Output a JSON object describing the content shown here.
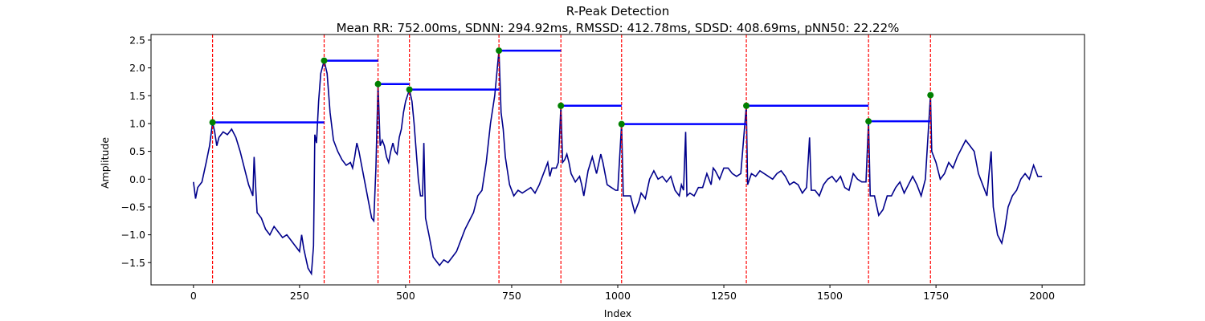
{
  "chart_data": {
    "type": "line",
    "title": "R-Peak Detection",
    "subtitle": "Mean RR: 752.00ms, SDNN: 294.92ms, RMSSD: 412.78ms, SDSD: 408.69ms, pNN50: 22.22%",
    "x_label": "Index",
    "y_label": "Amplitude",
    "xlim": [
      -100,
      2100
    ],
    "ylim": [
      -1.9,
      2.6
    ],
    "xticks": [
      0,
      250,
      500,
      750,
      1000,
      1250,
      1500,
      1750,
      2000
    ],
    "yticks": [
      {
        "value": -1.5,
        "label": "−1.5"
      },
      {
        "value": -1,
        "label": "−1.0"
      },
      {
        "value": -0.5,
        "label": "−0.5"
      },
      {
        "value": 0,
        "label": "0.0"
      },
      {
        "value": 0.5,
        "label": "0.5"
      },
      {
        "value": 1,
        "label": "1.0"
      },
      {
        "value": 1.5,
        "label": "1.5"
      },
      {
        "value": 2,
        "label": "2.0"
      },
      {
        "value": 2.5,
        "label": "2.5"
      }
    ],
    "signal": {
      "color": "#00008b",
      "x": [
        0,
        5,
        10,
        20,
        30,
        38,
        45,
        50,
        55,
        60,
        70,
        80,
        90,
        100,
        110,
        120,
        130,
        140,
        143,
        147,
        150,
        160,
        170,
        180,
        190,
        200,
        210,
        220,
        230,
        240,
        250,
        255,
        260,
        270,
        278,
        283,
        286,
        290,
        295,
        300,
        308,
        315,
        322,
        330,
        340,
        350,
        360,
        370,
        375,
        380,
        385,
        390,
        395,
        400,
        410,
        420,
        425,
        430,
        435,
        440,
        445,
        450,
        455,
        460,
        465,
        470,
        475,
        480,
        485,
        490,
        495,
        500,
        509,
        515,
        520,
        525,
        530,
        535,
        540,
        543,
        547,
        555,
        565,
        575,
        580,
        590,
        600,
        610,
        620,
        630,
        640,
        650,
        660,
        670,
        680,
        690,
        700,
        710,
        720,
        725,
        730,
        735,
        745,
        755,
        765,
        775,
        785,
        795,
        805,
        815,
        825,
        835,
        840,
        845,
        855,
        860,
        866,
        870,
        875,
        880,
        885,
        890,
        900,
        910,
        915,
        920,
        930,
        940,
        950,
        960,
        965,
        975,
        985,
        995,
        1000,
        1009,
        1013,
        1020,
        1030,
        1040,
        1050,
        1055,
        1065,
        1075,
        1085,
        1095,
        1105,
        1115,
        1125,
        1135,
        1145,
        1150,
        1155,
        1160,
        1163,
        1170,
        1180,
        1190,
        1200,
        1210,
        1220,
        1225,
        1230,
        1240,
        1250,
        1260,
        1270,
        1280,
        1290,
        1303,
        1306,
        1315,
        1325,
        1335,
        1345,
        1355,
        1365,
        1375,
        1385,
        1395,
        1405,
        1415,
        1425,
        1435,
        1445,
        1452,
        1456,
        1465,
        1475,
        1485,
        1495,
        1505,
        1515,
        1525,
        1535,
        1545,
        1555,
        1565,
        1575,
        1585,
        1591,
        1595,
        1605,
        1615,
        1625,
        1635,
        1645,
        1655,
        1665,
        1675,
        1685,
        1695,
        1705,
        1715,
        1725,
        1737,
        1740,
        1750,
        1760,
        1770,
        1780,
        1790,
        1800,
        1810,
        1820,
        1830,
        1840,
        1850,
        1860,
        1870,
        1880,
        1885,
        1895,
        1905,
        1912,
        1920,
        1930,
        1940,
        1950,
        1960,
        1970,
        1980,
        1985,
        1990,
        2000
      ],
      "values": [
        -0.05,
        -0.35,
        -0.15,
        -0.05,
        0.3,
        0.6,
        1.02,
        0.85,
        0.6,
        0.75,
        0.85,
        0.8,
        0.9,
        0.75,
        0.5,
        0.2,
        -0.1,
        -0.3,
        0.4,
        -0.2,
        -0.6,
        -0.7,
        -0.9,
        -1.0,
        -0.85,
        -0.95,
        -1.05,
        -1.0,
        -1.1,
        -1.2,
        -1.3,
        -1.0,
        -1.25,
        -1.6,
        -1.7,
        -1.2,
        0.8,
        0.65,
        1.4,
        1.9,
        2.13,
        1.9,
        1.2,
        0.7,
        0.5,
        0.35,
        0.25,
        0.3,
        0.2,
        0.4,
        0.65,
        0.5,
        0.3,
        0.1,
        -0.3,
        -0.7,
        -0.75,
        0.2,
        1.71,
        0.6,
        0.7,
        0.6,
        0.4,
        0.3,
        0.5,
        0.65,
        0.5,
        0.45,
        0.75,
        0.9,
        1.2,
        1.4,
        1.61,
        1.4,
        1.0,
        0.5,
        0.0,
        -0.3,
        -0.3,
        0.65,
        -0.7,
        -1.0,
        -1.4,
        -1.5,
        -1.55,
        -1.45,
        -1.5,
        -1.4,
        -1.3,
        -1.1,
        -0.9,
        -0.75,
        -0.6,
        -0.3,
        -0.2,
        0.3,
        1.0,
        1.5,
        2.31,
        1.2,
        0.9,
        0.4,
        -0.1,
        -0.3,
        -0.2,
        -0.25,
        -0.2,
        -0.15,
        -0.25,
        -0.1,
        0.1,
        0.3,
        0.05,
        0.2,
        0.2,
        0.3,
        1.32,
        0.3,
        0.35,
        0.45,
        0.3,
        0.1,
        -0.05,
        0.05,
        -0.1,
        -0.3,
        0.15,
        0.4,
        0.1,
        0.45,
        0.3,
        -0.1,
        -0.15,
        -0.2,
        -0.2,
        0.99,
        -0.3,
        -0.3,
        -0.3,
        -0.6,
        -0.4,
        -0.25,
        -0.35,
        0.0,
        0.15,
        0.0,
        0.05,
        -0.05,
        0.05,
        -0.2,
        -0.3,
        -0.1,
        -0.2,
        0.85,
        -0.3,
        -0.25,
        -0.3,
        -0.15,
        -0.15,
        0.1,
        -0.1,
        0.2,
        0.15,
        0.0,
        0.2,
        0.2,
        0.1,
        0.05,
        0.1,
        1.32,
        -0.1,
        0.1,
        0.05,
        0.15,
        0.1,
        0.05,
        0.0,
        0.1,
        0.15,
        0.05,
        -0.1,
        -0.05,
        -0.1,
        -0.25,
        -0.15,
        0.75,
        -0.2,
        -0.2,
        -0.3,
        -0.1,
        0.0,
        0.05,
        -0.05,
        0.05,
        -0.15,
        -0.2,
        0.1,
        0.0,
        -0.05,
        -0.05,
        1.04,
        -0.3,
        -0.3,
        -0.65,
        -0.55,
        -0.3,
        -0.3,
        -0.15,
        -0.05,
        -0.25,
        -0.1,
        0.05,
        -0.1,
        -0.3,
        0.0,
        1.51,
        0.5,
        0.3,
        0.0,
        0.1,
        0.3,
        0.2,
        0.4,
        0.55,
        0.7,
        0.6,
        0.5,
        0.1,
        -0.1,
        -0.3,
        0.5,
        -0.5,
        -1.0,
        -1.15,
        -0.9,
        -0.5,
        -0.3,
        -0.2,
        0.0,
        0.1,
        0.0,
        0.25,
        0.15,
        0.05,
        0.05
      ]
    },
    "peaks": {
      "color": "#008000",
      "x": [
        45,
        308,
        435,
        509,
        720,
        866,
        1009,
        1303,
        1591,
        1737
      ],
      "values": [
        1.02,
        2.13,
        1.71,
        1.61,
        2.31,
        1.32,
        0.99,
        1.32,
        1.04,
        1.51
      ]
    },
    "peak_line_color": "#ff0000",
    "rr_line_color": "#0000ff"
  }
}
